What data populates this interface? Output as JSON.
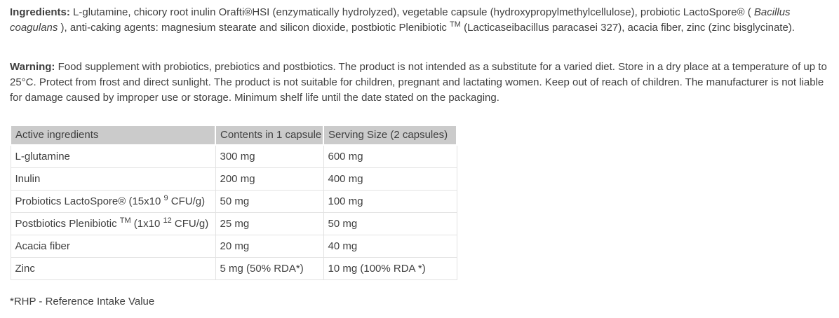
{
  "colors": {
    "text": "#404040",
    "header_bg": "#cbcbcb",
    "table_border": "#e2e2e2",
    "page_bg": "#ffffff"
  },
  "ingredients_paragraph": {
    "segments": [
      {
        "text": "Ingredients:",
        "style": "bold"
      },
      {
        "text": "  L-glutamine, chicory root inulin Orafti®HSI (enzymatically hydrolyzed), vegetable capsule (hydroxypropylmethylcellulose), probiotic LactoSpore® ( "
      },
      {
        "text": "Bacillus coagulans",
        "style": "italic"
      },
      {
        "text": " ), anti-caking agents: magnesium stearate and silicon dioxide, postbiotic Plenibiotic "
      },
      {
        "text": "TM",
        "style": "sup"
      },
      {
        "text": " (Lacticaseibacillus paracasei 327), acacia fiber, zinc (zinc bisglycinate)."
      }
    ]
  },
  "warning_paragraph": {
    "segments": [
      {
        "text": "Warning:",
        "style": "bold"
      },
      {
        "text": " Food supplement with probiotics, prebiotics and postbiotics. The product is not intended as a substitute for a varied diet. Store in a dry place at a temperature of up to 25°C. Protect from frost and direct sunlight. The product is not suitable for children, pregnant and lactating women. Keep out of reach of children. The manufacturer is not liable for damage caused by improper use or storage. Minimum shelf life until the date stated on the packaging."
      }
    ]
  },
  "table": {
    "headers": [
      "Active ingredients",
      "Contents in 1 capsule",
      "Serving Size (2 capsules)"
    ],
    "rows": [
      {
        "name": [
          {
            "text": "L-glutamine"
          }
        ],
        "contents_1_capsule": "300 mg",
        "serving_2_capsules": "600 mg"
      },
      {
        "name": [
          {
            "text": "Inulin"
          }
        ],
        "contents_1_capsule": "200 mg",
        "serving_2_capsules": "400 mg"
      },
      {
        "name": [
          {
            "text": "Probiotics LactoSpore® (15x10 "
          },
          {
            "text": "9",
            "style": "sup"
          },
          {
            "text": " CFU/g)"
          }
        ],
        "contents_1_capsule": "50 mg",
        "serving_2_capsules": "100 mg"
      },
      {
        "name": [
          {
            "text": "Postbiotics Plenibiotic "
          },
          {
            "text": "TM",
            "style": "sup"
          },
          {
            "text": " (1x10 "
          },
          {
            "text": "12",
            "style": "sup"
          },
          {
            "text": " CFU/g)"
          }
        ],
        "contents_1_capsule": "25 mg",
        "serving_2_capsules": "50 mg"
      },
      {
        "name": [
          {
            "text": "Acacia fiber"
          }
        ],
        "contents_1_capsule": "20 mg",
        "serving_2_capsules": "40 mg"
      },
      {
        "name": [
          {
            "text": "Zinc"
          }
        ],
        "contents_1_capsule": "5 mg (50% RDA*)",
        "serving_2_capsules": "10 mg (100% RDA *)"
      }
    ]
  },
  "footnote": "*RHP - Reference Intake Value"
}
